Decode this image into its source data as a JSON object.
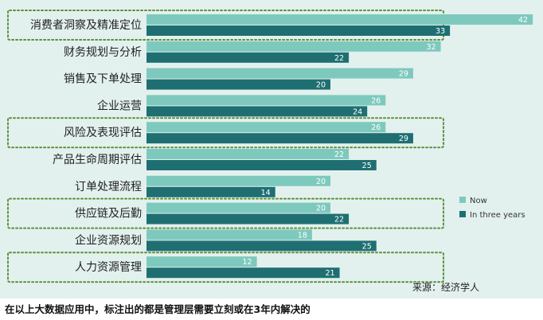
{
  "chart_data": {
    "type": "bar",
    "orientation": "horizontal",
    "categories": [
      "消费者洞察及精准定位",
      "财务规划与分析",
      "销售及下单处理",
      "企业运营",
      "风险及表现评估",
      "产品生命周期评估",
      "订单处理流程",
      "供应链及后勤",
      "企业资源规划",
      "人力资源管理"
    ],
    "highlighted": [
      "消费者洞察及精准定位",
      "风险及表现评估",
      "供应链及后勤",
      "人力资源管理"
    ],
    "series": [
      {
        "name": "Now",
        "color": "#7ec9bd",
        "values": [
          42,
          32,
          29,
          26,
          26,
          22,
          20,
          20,
          18,
          12
        ]
      },
      {
        "name": "In three years",
        "color": "#1f6f72",
        "values": [
          33,
          22,
          20,
          24,
          29,
          25,
          14,
          22,
          25,
          21
        ]
      }
    ],
    "title": "",
    "xlabel": "",
    "ylabel": "",
    "xlim": [
      0,
      43
    ],
    "grid": false,
    "legend": "right",
    "source": "来源：经济学人"
  },
  "caption": "在以上大数据应用中，标注出的都是管理层需要立刻或在3年内解决的",
  "colors": {
    "panel": "#e2f1ee",
    "highlight_border": "#5f8f3a",
    "label_text": "#222222",
    "value_text": "#ffffff"
  }
}
